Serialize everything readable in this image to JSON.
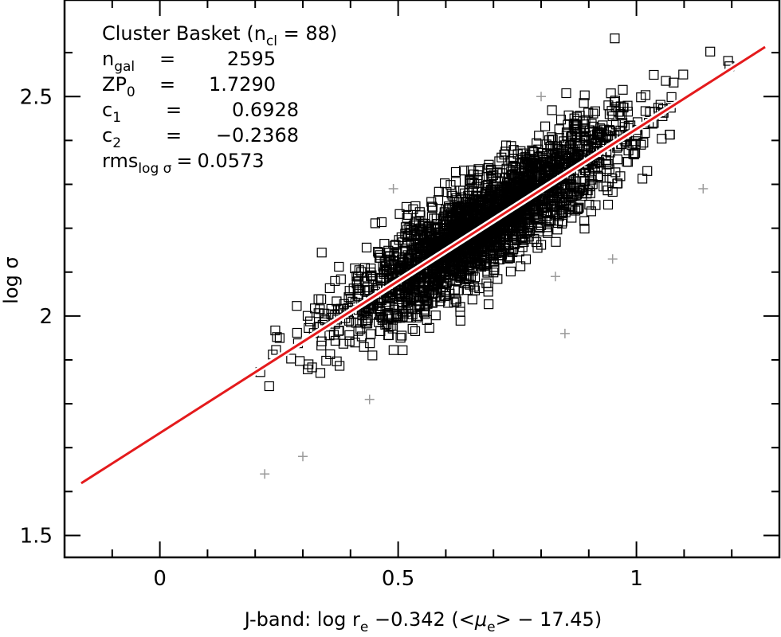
{
  "chart_data": {
    "type": "scatter",
    "xlabel_parts": {
      "prefix": "J-band:  log r",
      "sub1": "e",
      "middle": " −0.342 (<",
      "mu": "μ",
      "sub2": "e",
      "suffix": "> − 17.45)"
    },
    "ylabel": "log σ",
    "xlim": [
      -0.2,
      1.3
    ],
    "ylim": [
      1.45,
      2.72
    ],
    "x_major_ticks": [
      0,
      0.5,
      1
    ],
    "x_minor_ticks": [
      -0.1,
      0.1,
      0.2,
      0.3,
      0.4,
      0.6,
      0.7,
      0.8,
      0.9,
      1.1,
      1.2
    ],
    "x_tick_labels": [
      "0",
      "0.5",
      "1"
    ],
    "y_major_ticks": [
      1.5,
      2,
      2.5
    ],
    "y_minor_ticks": [
      1.6,
      1.7,
      1.8,
      1.9,
      2.1,
      2.2,
      2.3,
      2.4,
      2.6
    ],
    "y_tick_labels": [
      "1.5",
      "2",
      "2.5"
    ],
    "grid": false,
    "fit_line": {
      "color": "#e41a1c",
      "halo_color": "#ffffff",
      "x": [
        -0.165,
        1.27
      ],
      "y": [
        1.619,
        2.613
      ]
    },
    "scatter": {
      "center_x": [
        -0.16,
        1.27
      ],
      "center_y": [
        1.62,
        2.615
      ],
      "n": 2595,
      "sigma_x": 0.12,
      "sigma_y": 0.055,
      "marker": "open-square"
    },
    "outliers": {
      "marker": "plus",
      "color": "#9a9a9a",
      "x": [
        0.22,
        0.3,
        0.44,
        0.49,
        0.8,
        0.83,
        0.85,
        0.95,
        1.14
      ],
      "y": [
        1.64,
        1.68,
        1.81,
        2.29,
        2.5,
        2.09,
        1.96,
        2.13,
        2.29
      ]
    },
    "annotation": {
      "line1_prefix": "Cluster Basket (n",
      "line1_sub": "cl",
      "line1_suffix": " = 88)",
      "ngal_base": "n",
      "ngal_sub": "gal",
      "ngal_eq": "=",
      "ngal_value": "2595",
      "zp_base": "ZP",
      "zp_sub": "0",
      "zp_eq": "=",
      "zp_value": "1.7290",
      "c1_base": "c",
      "c1_sub": "1",
      "c1_eq": "=",
      "c1_value": "0.6928",
      "c2_base": "c",
      "c2_sub": "2",
      "c2_eq": "=",
      "c2_value": "−0.2368",
      "rms_base": "rms",
      "rms_sub": "log σ",
      "rms_eq": "=",
      "rms_value": "0.0573"
    }
  }
}
